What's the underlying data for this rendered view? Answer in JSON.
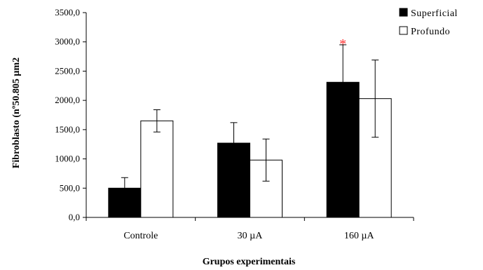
{
  "chart_data": {
    "type": "bar",
    "xlabel": "Grupos experimentais",
    "ylabel": "Fibroblasto (nº50.805 µm2",
    "ylim": [
      0,
      3500
    ],
    "yticks": [
      "0,0",
      "500,0",
      "1000,0",
      "1500,0",
      "2000,0",
      "2500,0",
      "3000,0",
      "3500,0"
    ],
    "ytick_values": [
      0,
      500,
      1000,
      1500,
      2000,
      2500,
      3000,
      3500
    ],
    "categories": [
      "Controle",
      "30 µA",
      "160 µA"
    ],
    "series": [
      {
        "name": "Superficial",
        "values": [
          500,
          1270,
          2310
        ],
        "errors": [
          180,
          350,
          640
        ],
        "color": "#000000"
      },
      {
        "name": "Profundo",
        "values": [
          1650,
          980,
          2030
        ],
        "errors": [
          190,
          360,
          660
        ],
        "color": "#ffffff"
      }
    ],
    "legend_position": "top-right",
    "grid": false,
    "annotations": [
      {
        "text": "*",
        "category": 2,
        "series": 0,
        "color": "#ff3030"
      }
    ]
  }
}
